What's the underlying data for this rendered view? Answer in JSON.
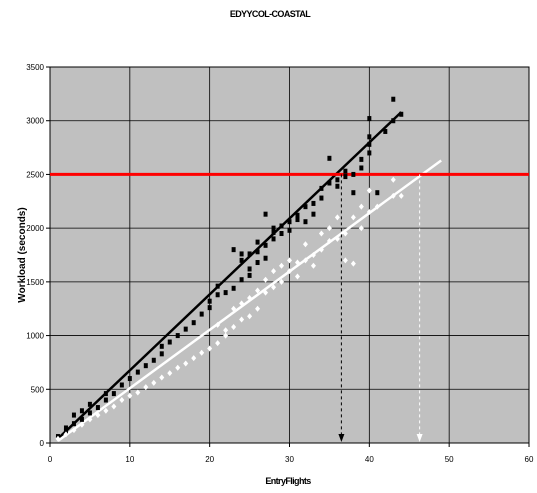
{
  "chart_data": {
    "type": "scatter",
    "title": "EDYYCOL-COASTAL",
    "xlabel": "EntryFlights",
    "ylabel": "Workload (seconds)",
    "xlim": [
      0,
      60
    ],
    "ylim": [
      0,
      3500
    ],
    "x_ticks": [
      "0",
      "10",
      "20",
      "30",
      "40",
      "50",
      "60"
    ],
    "y_ticks": [
      "0",
      "500",
      "1000",
      "1500",
      "2000",
      "2500",
      "3000",
      "3500"
    ],
    "grid": true,
    "background_color": "#c0c0c0",
    "threshold": {
      "y": 2500,
      "color": "#ff0000"
    },
    "series": [
      {
        "color": "#000000",
        "marker": "square",
        "points": [
          [
            1,
            60
          ],
          [
            2,
            110
          ],
          [
            2,
            140
          ],
          [
            3,
            180
          ],
          [
            3,
            260
          ],
          [
            4,
            220
          ],
          [
            4,
            300
          ],
          [
            5,
            280
          ],
          [
            5,
            360
          ],
          [
            6,
            330
          ],
          [
            7,
            400
          ],
          [
            7,
            460
          ],
          [
            8,
            460
          ],
          [
            9,
            540
          ],
          [
            10,
            600
          ],
          [
            11,
            660
          ],
          [
            12,
            720
          ],
          [
            13,
            770
          ],
          [
            14,
            830
          ],
          [
            14,
            900
          ],
          [
            15,
            940
          ],
          [
            16,
            1000
          ],
          [
            17,
            1060
          ],
          [
            18,
            1120
          ],
          [
            19,
            1200
          ],
          [
            20,
            1260
          ],
          [
            20,
            1320
          ],
          [
            21,
            1380
          ],
          [
            21,
            1460
          ],
          [
            22,
            1400
          ],
          [
            23,
            1440
          ],
          [
            23,
            1800
          ],
          [
            24,
            1520
          ],
          [
            24,
            1700
          ],
          [
            24,
            1760
          ],
          [
            25,
            1560
          ],
          [
            25,
            1620
          ],
          [
            25,
            1760
          ],
          [
            26,
            1680
          ],
          [
            26,
            1780
          ],
          [
            26,
            1870
          ],
          [
            27,
            1720
          ],
          [
            27,
            1840
          ],
          [
            27,
            2130
          ],
          [
            28,
            1900
          ],
          [
            28,
            1960
          ],
          [
            28,
            2000
          ],
          [
            29,
            1950
          ],
          [
            29,
            2020
          ],
          [
            30,
            2060
          ],
          [
            30,
            1980
          ],
          [
            31,
            2080
          ],
          [
            31,
            2120
          ],
          [
            32,
            2200
          ],
          [
            32,
            2060
          ],
          [
            33,
            2130
          ],
          [
            33,
            2230
          ],
          [
            34,
            2280
          ],
          [
            34,
            2370
          ],
          [
            35,
            2420
          ],
          [
            35,
            2650
          ],
          [
            36,
            2390
          ],
          [
            36,
            2450
          ],
          [
            37,
            2480
          ],
          [
            37,
            2530
          ],
          [
            38,
            2500
          ],
          [
            38,
            2330
          ],
          [
            39,
            2560
          ],
          [
            39,
            2640
          ],
          [
            40,
            2700
          ],
          [
            40,
            2780
          ],
          [
            40,
            2850
          ],
          [
            40,
            3020
          ],
          [
            41,
            2330
          ],
          [
            42,
            2900
          ],
          [
            43,
            3000
          ],
          [
            43,
            3200
          ],
          [
            44,
            3060
          ]
        ],
        "fit": [
          [
            1,
            40
          ],
          [
            44,
            3080
          ]
        ]
      },
      {
        "color": "#ffffff",
        "marker": "diamond",
        "points": [
          [
            1,
            40
          ],
          [
            2,
            80
          ],
          [
            3,
            120
          ],
          [
            4,
            170
          ],
          [
            5,
            220
          ],
          [
            6,
            260
          ],
          [
            7,
            300
          ],
          [
            8,
            340
          ],
          [
            9,
            400
          ],
          [
            10,
            440
          ],
          [
            11,
            470
          ],
          [
            12,
            520
          ],
          [
            13,
            560
          ],
          [
            14,
            610
          ],
          [
            15,
            650
          ],
          [
            16,
            700
          ],
          [
            17,
            740
          ],
          [
            18,
            790
          ],
          [
            19,
            840
          ],
          [
            20,
            880
          ],
          [
            21,
            930
          ],
          [
            21,
            1100
          ],
          [
            22,
            1000
          ],
          [
            22,
            1050
          ],
          [
            23,
            1080
          ],
          [
            23,
            1250
          ],
          [
            24,
            1150
          ],
          [
            24,
            1300
          ],
          [
            25,
            1180
          ],
          [
            25,
            1350
          ],
          [
            26,
            1250
          ],
          [
            26,
            1420
          ],
          [
            27,
            1400
          ],
          [
            27,
            1520
          ],
          [
            28,
            1450
          ],
          [
            28,
            1600
          ],
          [
            29,
            1500
          ],
          [
            29,
            1650
          ],
          [
            30,
            1600
          ],
          [
            30,
            1700
          ],
          [
            31,
            1550
          ],
          [
            31,
            1680
          ],
          [
            32,
            1700
          ],
          [
            32,
            1850
          ],
          [
            33,
            1750
          ],
          [
            33,
            1650
          ],
          [
            34,
            1800
          ],
          [
            34,
            1950
          ],
          [
            35,
            1880
          ],
          [
            35,
            2000
          ],
          [
            36,
            1900
          ],
          [
            36,
            2100
          ],
          [
            37,
            1950
          ],
          [
            37,
            1700
          ],
          [
            38,
            2100
          ],
          [
            38,
            1670
          ],
          [
            39,
            2200
          ],
          [
            39,
            2000
          ],
          [
            40,
            2150
          ],
          [
            40,
            2350
          ],
          [
            41,
            2200
          ],
          [
            43,
            2300
          ],
          [
            43,
            2450
          ],
          [
            44,
            2300
          ]
        ],
        "fit": [
          [
            1,
            20
          ],
          [
            49,
            2630
          ]
        ]
      }
    ],
    "projection_lines": [
      {
        "x": 36.5,
        "y": 2500,
        "color": "#000000"
      },
      {
        "x": 46.3,
        "y": 2500,
        "color": "#ffffff"
      }
    ]
  }
}
